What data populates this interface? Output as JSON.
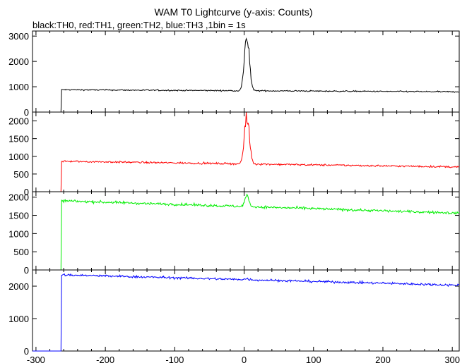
{
  "title": "WAM T0 Lightcurve (y-axis: Counts)",
  "subtitle": "black:TH0, red:TH1, green:TH2, blue:TH3 ,1bin = 1s",
  "chart_data": {
    "type": "line",
    "title": "WAM T0 Lightcurve (y-axis: Counts)",
    "subtitle": "black:TH0, red:TH1, green:TH2, blue:TH3 ,1bin = 1s",
    "xlabel": "",
    "ylabel": "Counts",
    "xlim": [
      -305,
      310
    ],
    "xticks": [
      -300,
      -200,
      -100,
      0,
      100,
      200,
      300
    ],
    "grid": false,
    "panels": [
      {
        "name": "TH0",
        "color": "#000000",
        "ylim": [
          0,
          3200
        ],
        "yticks": [
          0,
          1000,
          2000,
          3000
        ],
        "pre": 0,
        "plateau_start": 880,
        "plateau_end": 800,
        "noise": 25,
        "peak_t": 4,
        "peak": 3050,
        "peak_width": 3.5
      },
      {
        "name": "TH1",
        "color": "#ff0000",
        "ylim": [
          0,
          2250
        ],
        "yticks": [
          0,
          500,
          1000,
          1500,
          2000
        ],
        "pre": 0,
        "plateau_start": 860,
        "plateau_end": 700,
        "noise": 25,
        "peak_t": 4,
        "peak": 2150,
        "peak_width": 3.5
      },
      {
        "name": "TH2",
        "color": "#00ee00",
        "ylim": [
          0,
          2150
        ],
        "yticks": [
          0,
          500,
          1000,
          1500,
          2000
        ],
        "pre": 0,
        "plateau_start": 1900,
        "plateau_end": 1560,
        "noise": 35,
        "peak_t": 4,
        "peak": 2030,
        "peak_width": 3
      },
      {
        "name": "TH3",
        "color": "#0000ff",
        "ylim": [
          0,
          2500
        ],
        "yticks": [
          0,
          1000,
          2000
        ],
        "pre": 0,
        "plateau_start": 2350,
        "plateau_end": 2030,
        "noise": 35,
        "peak_t": 4,
        "peak": 2230,
        "peak_width": 3
      }
    ],
    "step_t": -263,
    "bin_s": 1
  }
}
